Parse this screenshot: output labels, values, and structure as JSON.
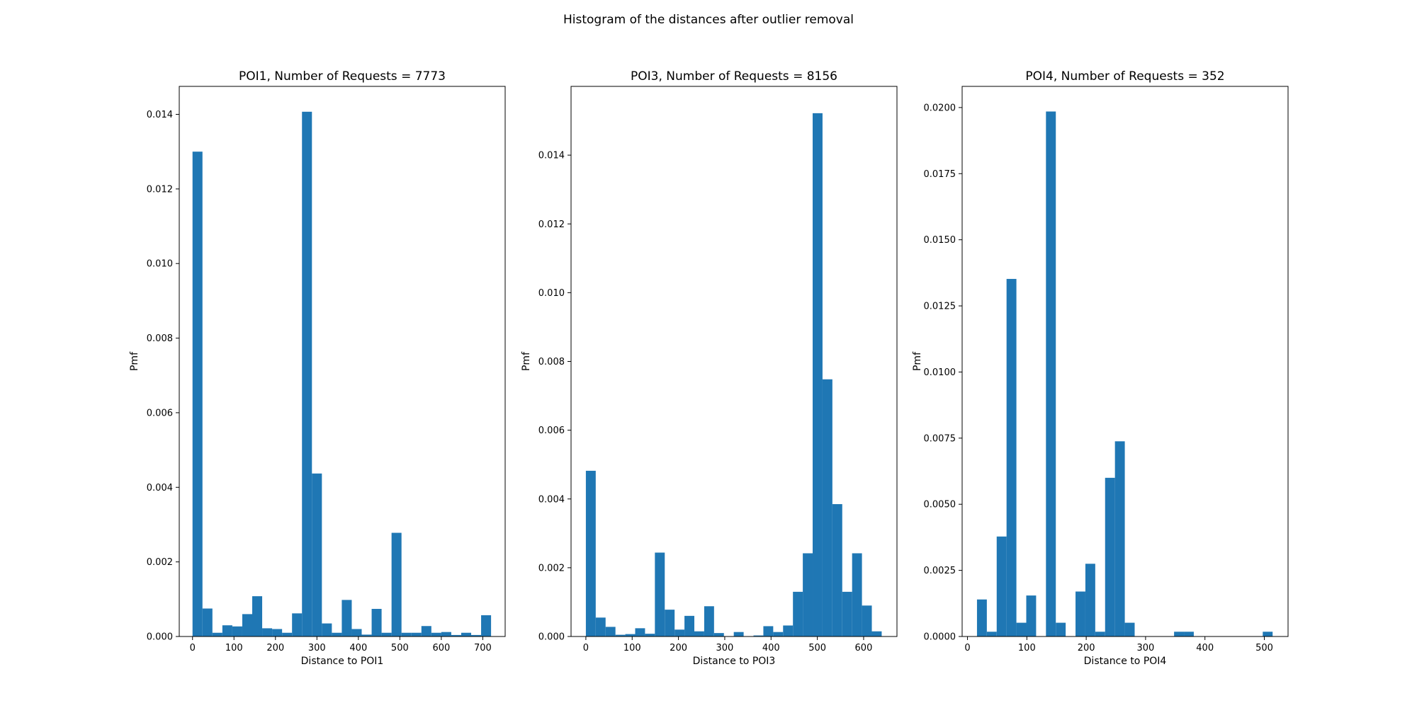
{
  "figure": {
    "suptitle": "Histogram of the distances after outlier removal"
  },
  "style": {
    "bar_color": "#1f77b4",
    "axes_color": "#000000",
    "background": "#ffffff"
  },
  "chart_data": [
    {
      "type": "bar",
      "title": "POI1, Number of Requests = 7773",
      "xlabel": "Distance to POI1",
      "ylabel": "Pmf",
      "xlim": [
        -32,
        754
      ],
      "ylim": [
        0,
        0.01475
      ],
      "xticks": [
        0,
        100,
        200,
        300,
        400,
        500,
        600,
        700
      ],
      "xtick_labels": [
        "0",
        "100",
        "200",
        "300",
        "400",
        "500",
        "600",
        "700"
      ],
      "yticks": [
        0,
        0.002,
        0.004,
        0.006,
        0.008,
        0.01,
        0.012,
        0.014
      ],
      "ytick_labels": [
        "0.000",
        "0.002",
        "0.004",
        "0.006",
        "0.008",
        "0.010",
        "0.012",
        "0.014"
      ],
      "bin_start": 0,
      "bin_width": 24,
      "values": [
        0.013,
        0.00075,
        0.0001,
        0.0003,
        0.00027,
        0.0006,
        0.00108,
        0.00022,
        0.0002,
        0.0001,
        0.00062,
        0.01407,
        0.00437,
        0.00035,
        0.0001,
        0.00098,
        0.0002,
        5e-05,
        0.00074,
        0.0001,
        0.00278,
        0.0001,
        0.0001,
        0.00028,
        0.0001,
        0.00012,
        4e-05,
        0.0001,
        4e-05,
        0.00057
      ]
    },
    {
      "type": "bar",
      "title": "POI3, Number of Requests = 8156",
      "xlabel": "Distance to POI3",
      "ylabel": "Pmf",
      "xlim": [
        -32,
        672
      ],
      "ylim": [
        0,
        0.016
      ],
      "xticks": [
        0,
        100,
        200,
        300,
        400,
        500,
        600
      ],
      "xtick_labels": [
        "0",
        "100",
        "200",
        "300",
        "400",
        "500",
        "600"
      ],
      "yticks": [
        0,
        0.002,
        0.004,
        0.006,
        0.008,
        0.01,
        0.012,
        0.014
      ],
      "ytick_labels": [
        "0.000",
        "0.002",
        "0.004",
        "0.006",
        "0.008",
        "0.010",
        "0.012",
        "0.014"
      ],
      "bin_start": 0,
      "bin_width": 21.3,
      "values": [
        0.00482,
        0.00055,
        0.00028,
        5e-05,
        7e-05,
        0.00024,
        8e-05,
        0.00244,
        0.00078,
        0.0002,
        0.0006,
        0.00015,
        0.00088,
        0.0001,
        0.0,
        0.00013,
        0.0,
        3e-05,
        0.0003,
        0.00013,
        0.00032,
        0.0013,
        0.00242,
        0.01522,
        0.00748,
        0.00385,
        0.0013,
        0.00242,
        0.0009,
        0.00015
      ]
    },
    {
      "type": "bar",
      "title": "POI4, Number of Requests = 352",
      "xlabel": "Distance to POI4",
      "ylabel": "Pmf",
      "xlim": [
        -9,
        540
      ],
      "ylim": [
        0,
        0.0208
      ],
      "xticks": [
        0,
        100,
        200,
        300,
        400,
        500
      ],
      "xtick_labels": [
        "0",
        "100",
        "200",
        "300",
        "400",
        "500"
      ],
      "yticks": [
        0,
        0.0025,
        0.005,
        0.0075,
        0.01,
        0.0125,
        0.015,
        0.0175,
        0.02
      ],
      "ytick_labels": [
        "0.0000",
        "0.0025",
        "0.0050",
        "0.0075",
        "0.0100",
        "0.0125",
        "0.0150",
        "0.0175",
        "0.0200"
      ],
      "bin_start": 16,
      "bin_width": 16.6,
      "values": [
        0.0014,
        0.00018,
        0.00378,
        0.01352,
        0.00052,
        0.00155,
        0.0,
        0.01985,
        0.00052,
        0.0,
        0.0017,
        0.00275,
        0.00018,
        0.006,
        0.00738,
        0.00052,
        0.0,
        0.0,
        0.0,
        0.0,
        0.00018,
        0.00018,
        0.0,
        0.0,
        0.0,
        0.0,
        0.0,
        0.0,
        0.0,
        0.00018
      ]
    }
  ]
}
